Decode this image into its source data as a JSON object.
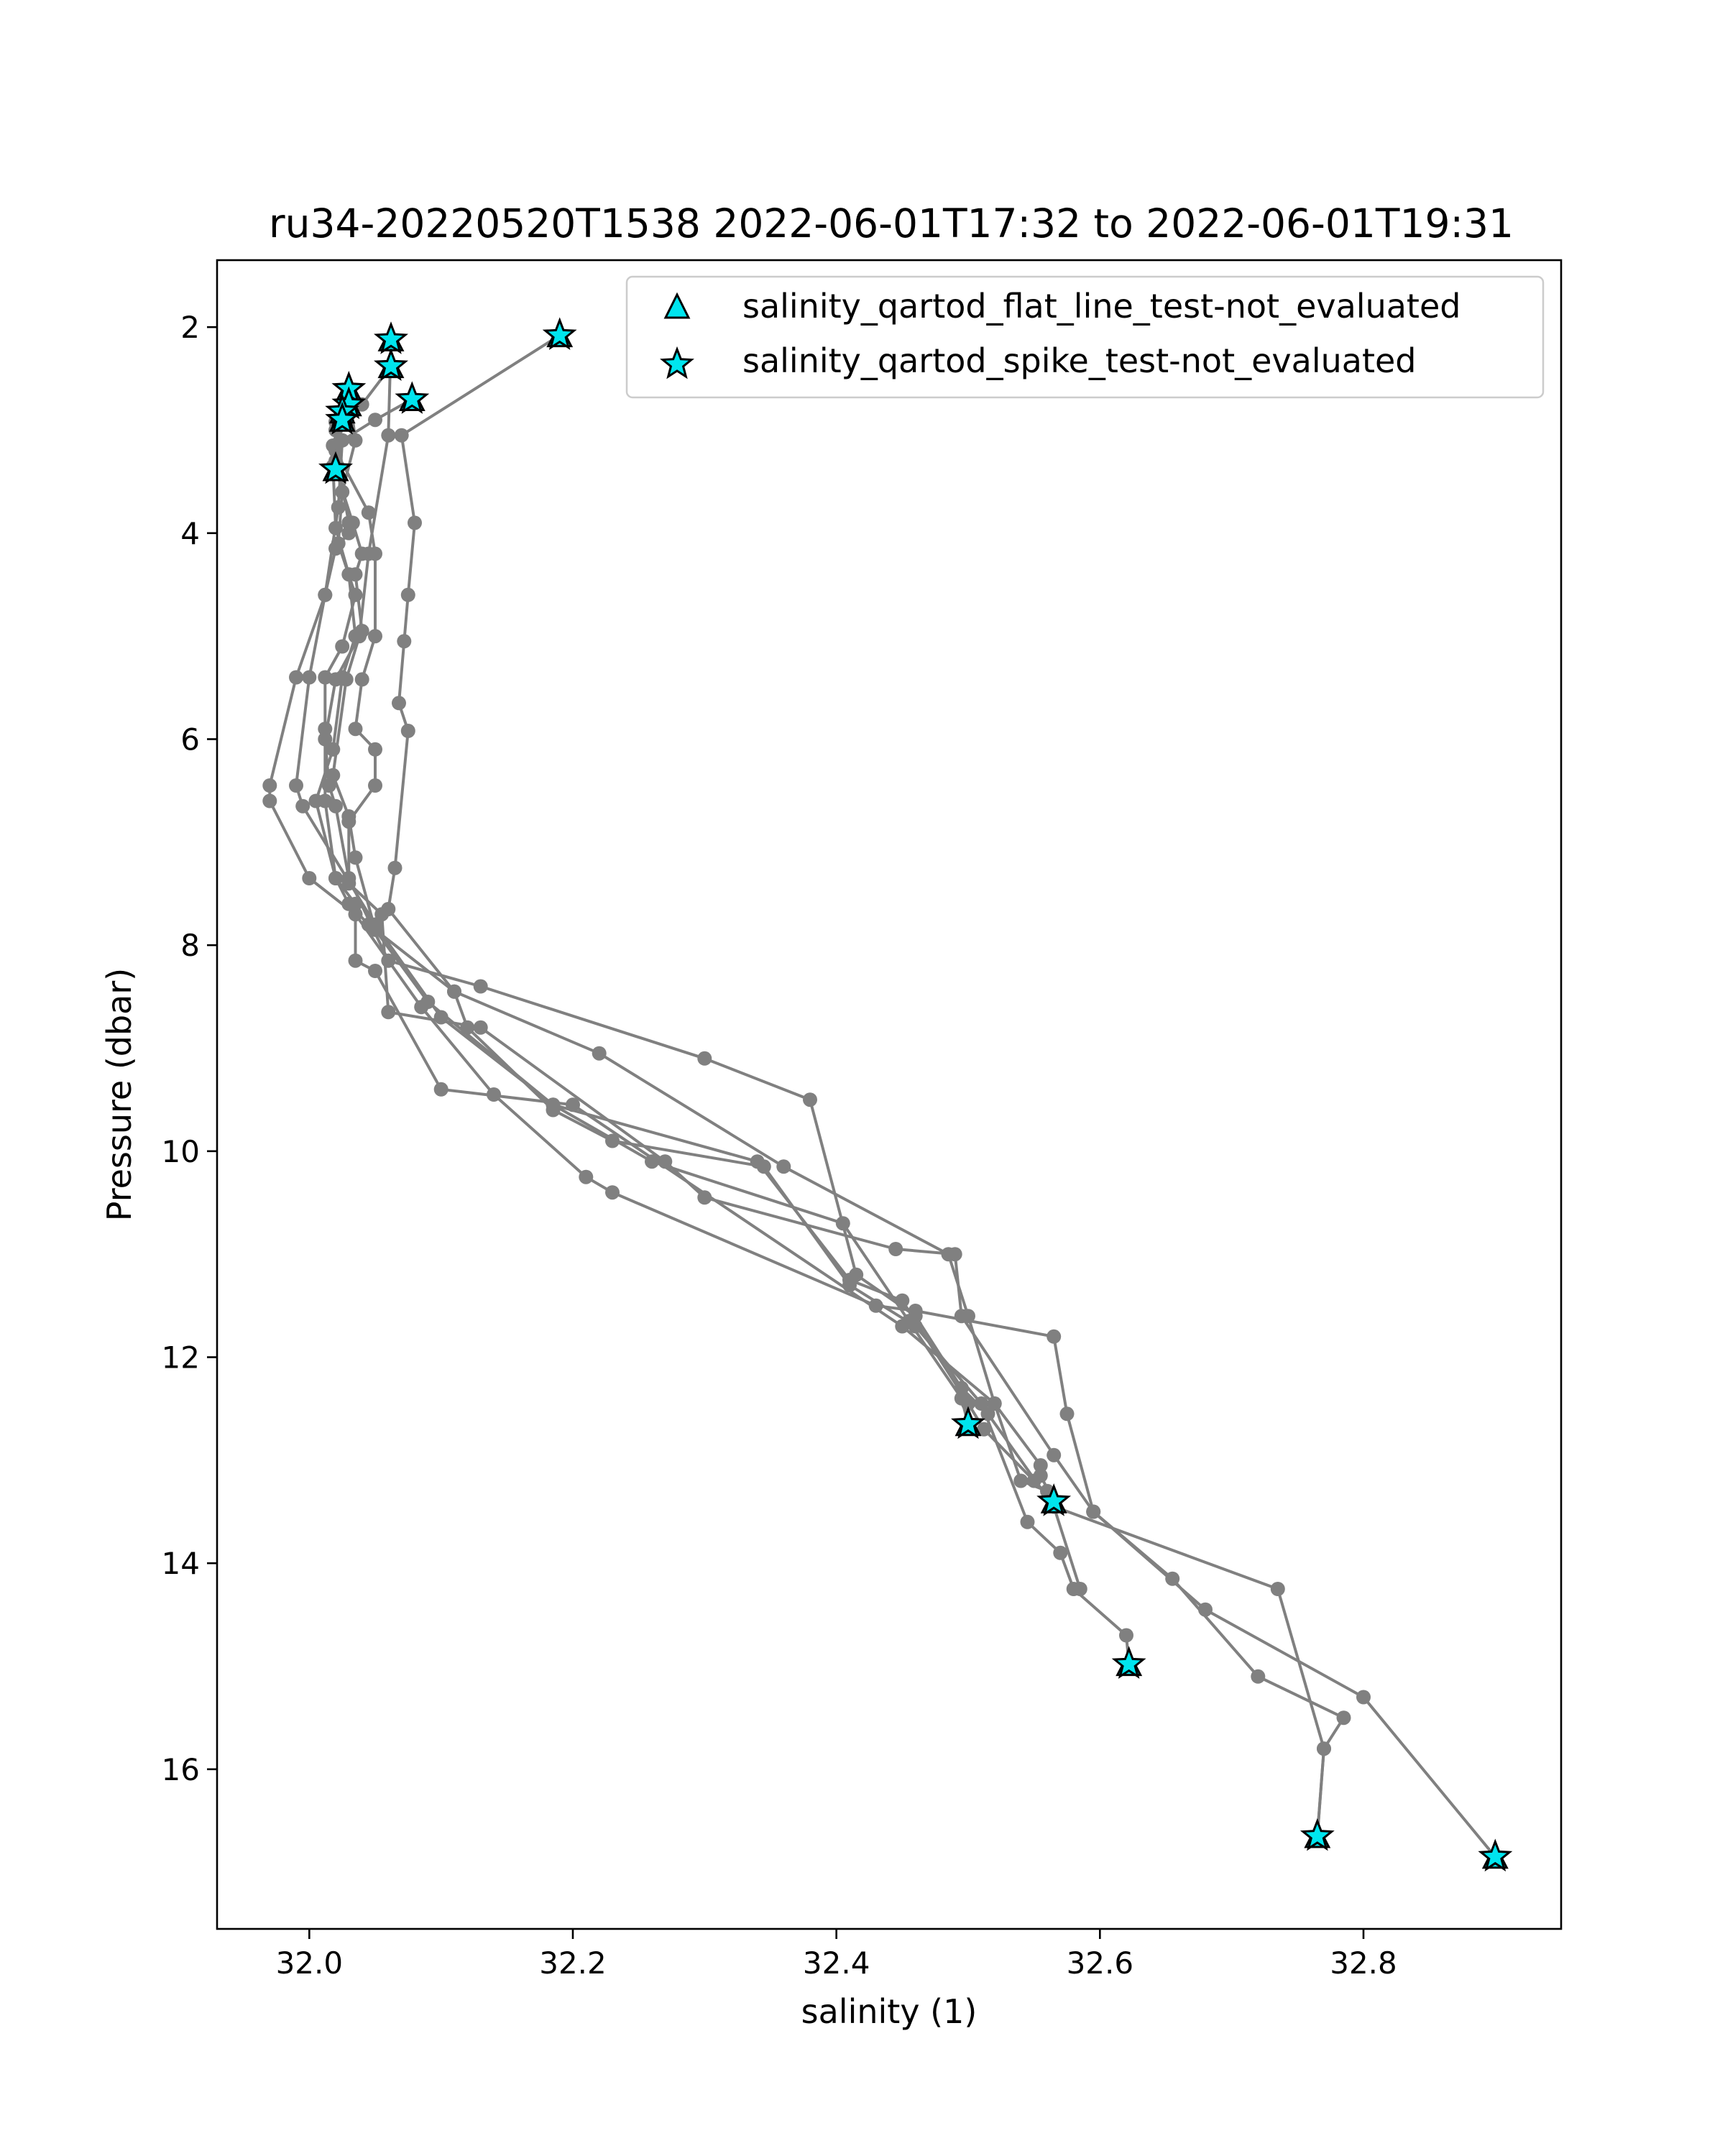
{
  "chart_data": {
    "type": "scatter",
    "title": "ru34-20220520T1538 2022-06-01T17:32 to 2022-06-01T19:31",
    "xlabel": "salinity (1)",
    "ylabel": "Pressure (dbar)",
    "xlim": [
      31.93,
      32.95
    ],
    "ylim": [
      17.55,
      1.35
    ],
    "y_inverted": true,
    "x_ticks": [
      32.0,
      32.2,
      32.4,
      32.6,
      32.8
    ],
    "x_tick_labels": [
      "32.0",
      "32.2",
      "32.4",
      "32.6",
      "32.8"
    ],
    "y_ticks": [
      2,
      4,
      6,
      8,
      10,
      12,
      14,
      16
    ],
    "y_tick_labels": [
      "2",
      "4",
      "6",
      "8",
      "10",
      "12",
      "14",
      "16"
    ],
    "grid": false,
    "legend_position": "top-right",
    "colors": {
      "profile": "#808080",
      "flag_fill": "#00e5ee",
      "flag_edge": "#000000"
    },
    "legend": [
      {
        "label": "salinity_qartod_flat_line_test-not_evaluated",
        "marker": "triangle"
      },
      {
        "label": "salinity_qartod_spike_test-not_evaluated",
        "marker": "star"
      }
    ],
    "profiles": [
      {
        "points": [
          [
            32.19,
            2.08
          ],
          [
            32.07,
            3.05
          ],
          [
            32.08,
            3.9
          ],
          [
            32.075,
            4.6
          ],
          [
            32.072,
            5.05
          ],
          [
            32.068,
            5.65
          ],
          [
            32.075,
            5.92
          ],
          [
            32.065,
            7.25
          ],
          [
            32.06,
            7.65
          ],
          [
            32.11,
            8.45
          ],
          [
            32.22,
            9.05
          ],
          [
            32.36,
            10.15
          ],
          [
            32.485,
            11.0
          ],
          [
            32.5,
            11.6
          ],
          [
            32.52,
            12.45
          ],
          [
            32.555,
            13.05
          ],
          [
            32.555,
            13.15
          ],
          [
            32.565,
            13.4
          ]
        ]
      },
      {
        "points": [
          [
            32.062,
            2.12
          ],
          [
            32.06,
            3.05
          ],
          [
            32.045,
            4.2
          ],
          [
            32.038,
            5.0
          ],
          [
            32.028,
            5.42
          ],
          [
            32.018,
            6.35
          ],
          [
            32.03,
            6.75
          ],
          [
            32.035,
            7.15
          ],
          [
            32.05,
            7.85
          ],
          [
            32.09,
            8.55
          ],
          [
            32.185,
            9.55
          ],
          [
            32.34,
            10.1
          ],
          [
            32.41,
            11.25
          ],
          [
            32.45,
            11.45
          ],
          [
            32.5,
            12.45
          ],
          [
            32.512,
            12.7
          ],
          [
            32.55,
            13.2
          ],
          [
            32.565,
            13.4
          ]
        ]
      },
      {
        "points": [
          [
            32.078,
            2.7
          ],
          [
            32.05,
            2.9
          ],
          [
            32.025,
            3.1
          ],
          [
            32.022,
            3.75
          ],
          [
            32.012,
            4.6
          ],
          [
            32.0,
            5.4
          ],
          [
            31.99,
            6.45
          ],
          [
            31.995,
            6.65
          ],
          [
            32.05,
            7.8
          ],
          [
            32.1,
            8.7
          ],
          [
            32.185,
            9.55
          ],
          [
            32.26,
            10.1
          ],
          [
            32.405,
            10.7
          ],
          [
            32.455,
            11.65
          ],
          [
            32.495,
            12.4
          ],
          [
            32.5,
            12.65
          ]
        ]
      },
      {
        "points": [
          [
            32.03,
            2.6
          ],
          [
            32.035,
            3.1
          ],
          [
            32.025,
            3.6
          ],
          [
            32.022,
            4.1
          ],
          [
            32.035,
            4.6
          ],
          [
            32.025,
            5.1
          ],
          [
            32.012,
            5.4
          ],
          [
            32.012,
            5.9
          ],
          [
            32.012,
            6.6
          ],
          [
            32.02,
            7.35
          ],
          [
            32.03,
            7.6
          ],
          [
            32.045,
            7.8
          ],
          [
            32.11,
            8.45
          ],
          [
            32.12,
            8.8
          ],
          [
            32.185,
            9.6
          ],
          [
            32.23,
            9.9
          ],
          [
            32.345,
            10.15
          ],
          [
            32.41,
            11.3
          ],
          [
            32.46,
            11.7
          ],
          [
            32.51,
            12.45
          ],
          [
            32.545,
            13.6
          ],
          [
            32.57,
            13.9
          ],
          [
            32.58,
            14.25
          ],
          [
            32.62,
            14.7
          ],
          [
            32.622,
            14.98
          ]
        ]
      },
      {
        "points": [
          [
            32.062,
            2.38
          ],
          [
            32.04,
            2.75
          ],
          [
            32.02,
            3.0
          ],
          [
            32.02,
            3.3
          ],
          [
            32.02,
            3.38
          ],
          [
            32.033,
            3.9
          ],
          [
            32.04,
            4.2
          ],
          [
            32.035,
            4.4
          ],
          [
            32.04,
            4.95
          ],
          [
            32.02,
            5.42
          ],
          [
            32.012,
            6.0
          ],
          [
            32.015,
            6.45
          ],
          [
            32.02,
            6.65
          ],
          [
            32.03,
            7.35
          ],
          [
            32.06,
            8.15
          ],
          [
            32.13,
            8.4
          ],
          [
            32.3,
            9.1
          ],
          [
            32.38,
            9.5
          ],
          [
            32.415,
            11.2
          ],
          [
            32.46,
            11.6
          ],
          [
            32.495,
            12.3
          ],
          [
            32.515,
            12.55
          ],
          [
            32.565,
            13.45
          ],
          [
            32.585,
            14.25
          ]
        ]
      },
      {
        "points": [
          [
            32.03,
            2.75
          ],
          [
            32.02,
            2.92
          ],
          [
            32.02,
            3.2
          ],
          [
            32.03,
            3.9
          ],
          [
            32.03,
            4.0
          ],
          [
            32.02,
            4.15
          ],
          [
            32.012,
            4.6
          ],
          [
            31.99,
            5.4
          ],
          [
            31.97,
            6.45
          ],
          [
            31.97,
            6.6
          ],
          [
            32.0,
            7.35
          ],
          [
            32.035,
            7.7
          ],
          [
            32.085,
            8.6
          ],
          [
            32.14,
            9.45
          ],
          [
            32.21,
            10.25
          ],
          [
            32.23,
            10.4
          ],
          [
            32.43,
            11.5
          ],
          [
            32.46,
            11.55
          ],
          [
            32.565,
            11.8
          ],
          [
            32.575,
            12.55
          ],
          [
            32.595,
            13.5
          ],
          [
            32.655,
            14.15
          ],
          [
            32.72,
            15.1
          ],
          [
            32.785,
            15.5
          ],
          [
            32.77,
            15.8
          ],
          [
            32.765,
            16.65
          ]
        ]
      },
      {
        "points": [
          [
            32.025,
            2.82
          ],
          [
            32.018,
            3.15
          ],
          [
            32.045,
            3.8
          ],
          [
            32.05,
            4.2
          ],
          [
            32.05,
            5.0
          ],
          [
            32.04,
            5.42
          ],
          [
            32.035,
            5.9
          ],
          [
            32.05,
            6.1
          ],
          [
            32.05,
            6.45
          ],
          [
            32.03,
            6.8
          ],
          [
            32.03,
            7.4
          ],
          [
            32.055,
            7.7
          ],
          [
            32.06,
            8.65
          ],
          [
            32.13,
            8.8
          ],
          [
            32.27,
            10.1
          ],
          [
            32.3,
            10.45
          ],
          [
            32.445,
            10.95
          ],
          [
            32.49,
            11.0
          ],
          [
            32.495,
            11.6
          ],
          [
            32.565,
            12.95
          ],
          [
            32.595,
            13.5
          ],
          [
            32.68,
            14.45
          ],
          [
            32.8,
            15.3
          ],
          [
            32.9,
            16.85
          ]
        ]
      },
      {
        "points": [
          [
            32.025,
            2.9
          ],
          [
            32.018,
            3.35
          ],
          [
            32.02,
            3.95
          ],
          [
            32.03,
            4.4
          ],
          [
            32.035,
            5.0
          ],
          [
            32.025,
            5.4
          ],
          [
            32.018,
            6.1
          ],
          [
            32.005,
            6.6
          ],
          [
            32.02,
            7.35
          ],
          [
            32.035,
            7.6
          ],
          [
            32.035,
            8.15
          ],
          [
            32.05,
            8.25
          ],
          [
            32.1,
            9.4
          ],
          [
            32.2,
            9.55
          ],
          [
            32.45,
            11.7
          ],
          [
            32.52,
            12.45
          ],
          [
            32.54,
            13.2
          ],
          [
            32.56,
            13.3
          ],
          [
            32.565,
            13.45
          ],
          [
            32.735,
            14.25
          ],
          [
            32.77,
            15.8
          ],
          [
            32.765,
            16.65
          ]
        ]
      }
    ],
    "flagged_points": [
      {
        "x": 32.19,
        "y": 2.08
      },
      {
        "x": 32.062,
        "y": 2.12
      },
      {
        "x": 32.062,
        "y": 2.38
      },
      {
        "x": 32.078,
        "y": 2.7
      },
      {
        "x": 32.03,
        "y": 2.6
      },
      {
        "x": 32.03,
        "y": 2.75
      },
      {
        "x": 32.025,
        "y": 2.82
      },
      {
        "x": 32.025,
        "y": 2.9
      },
      {
        "x": 32.02,
        "y": 3.38
      },
      {
        "x": 32.5,
        "y": 12.65
      },
      {
        "x": 32.565,
        "y": 13.4
      },
      {
        "x": 32.622,
        "y": 14.98
      },
      {
        "x": 32.765,
        "y": 16.65
      },
      {
        "x": 32.9,
        "y": 16.85
      }
    ]
  }
}
